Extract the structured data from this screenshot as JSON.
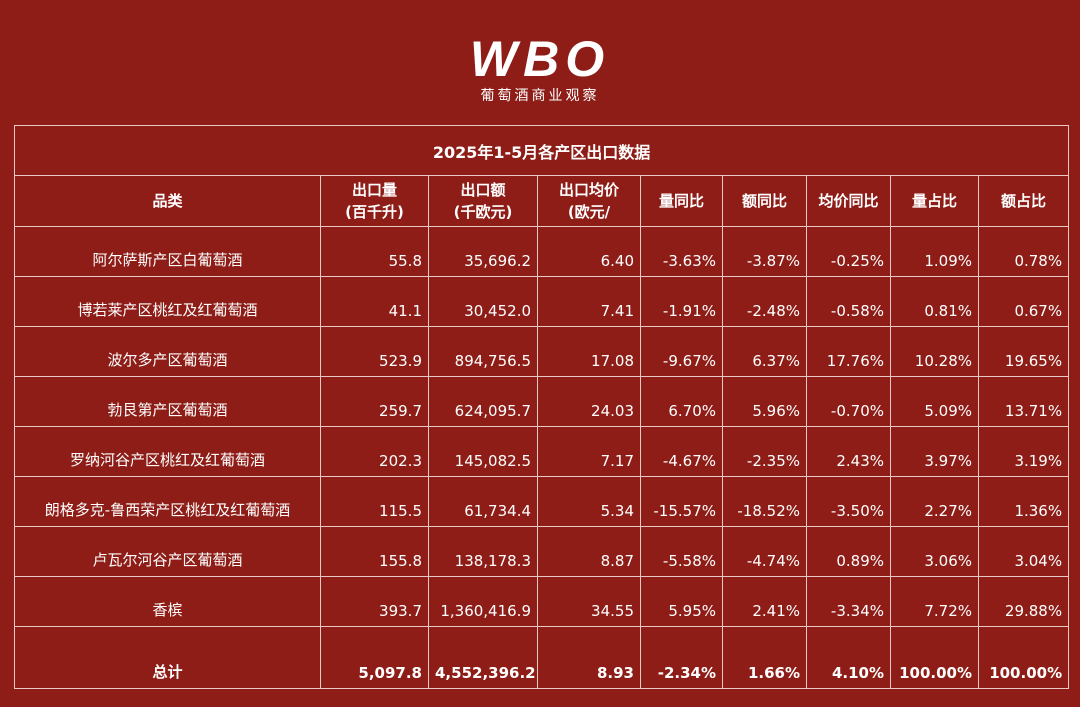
{
  "logo": {
    "brand": "WBO",
    "tagline": "葡萄酒商业观察"
  },
  "table": {
    "title": "2025年1-5月各产区出口数据",
    "header": [
      [
        "品类"
      ],
      [
        "出口量",
        "(百千升)"
      ],
      [
        "出口额",
        "(千欧元)"
      ],
      [
        "出口均价",
        "(欧元/"
      ],
      [
        "量同比"
      ],
      [
        "额同比"
      ],
      [
        "均价同比"
      ],
      [
        "量占比"
      ],
      [
        "额占比"
      ]
    ],
    "rows": [
      [
        "阿尔萨斯产区白葡萄酒",
        "55.8",
        "35,696.2",
        "6.40",
        "-3.63%",
        "-3.87%",
        "-0.25%",
        "1.09%",
        "0.78%"
      ],
      [
        "博若莱产区桃红及红葡萄酒",
        "41.1",
        "30,452.0",
        "7.41",
        "-1.91%",
        "-2.48%",
        "-0.58%",
        "0.81%",
        "0.67%"
      ],
      [
        "波尔多产区葡萄酒",
        "523.9",
        "894,756.5",
        "17.08",
        "-9.67%",
        "6.37%",
        "17.76%",
        "10.28%",
        "19.65%"
      ],
      [
        "勃艮第产区葡萄酒",
        "259.7",
        "624,095.7",
        "24.03",
        "6.70%",
        "5.96%",
        "-0.70%",
        "5.09%",
        "13.71%"
      ],
      [
        "罗纳河谷产区桃红及红葡萄酒",
        "202.3",
        "145,082.5",
        "7.17",
        "-4.67%",
        "-2.35%",
        "2.43%",
        "3.97%",
        "3.19%"
      ],
      [
        "朗格多克-鲁西荣产区桃红及红葡萄酒",
        "115.5",
        "61,734.4",
        "5.34",
        "-15.57%",
        "-18.52%",
        "-3.50%",
        "2.27%",
        "1.36%"
      ],
      [
        "卢瓦尔河谷产区葡萄酒",
        "155.8",
        "138,178.3",
        "8.87",
        "-5.58%",
        "-4.74%",
        "0.89%",
        "3.06%",
        "3.04%"
      ],
      [
        "香槟",
        "393.7",
        "1,360,416.9",
        "34.55",
        "5.95%",
        "2.41%",
        "-3.34%",
        "7.72%",
        "29.88%"
      ]
    ],
    "total": [
      "总计",
      "5,097.8",
      "4,552,396.2",
      "8.93",
      "-2.34%",
      "1.66%",
      "4.10%",
      "100.00%",
      "100.00%"
    ]
  }
}
